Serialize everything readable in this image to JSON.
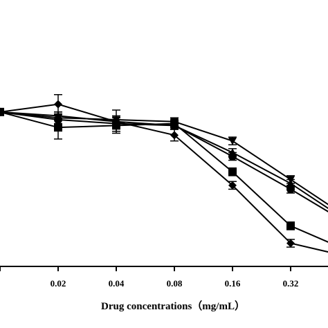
{
  "chart_data": {
    "type": "line",
    "xlabel": "Drug concentrations（mg/mL）",
    "ylabel": "",
    "title": "",
    "categories": [
      "",
      "0.02",
      "0.04",
      "0.08",
      "0.16",
      "0.32",
      ""
    ],
    "series": [
      {
        "marker": "triangle-down",
        "values": [
          100,
          97,
          96,
          95,
          85,
          65,
          45
        ],
        "errors": [
          0,
          3,
          2,
          2,
          2,
          2,
          2
        ]
      },
      {
        "marker": "circle",
        "values": [
          100,
          96,
          94,
          93,
          77,
          60,
          42
        ],
        "errors": [
          0,
          3,
          2,
          2,
          2,
          2,
          2
        ]
      },
      {
        "marker": "triangle-up",
        "values": [
          100,
          98,
          95,
          93,
          79,
          63,
          43
        ],
        "errors": [
          0,
          2,
          2,
          2,
          2,
          2,
          2
        ]
      },
      {
        "marker": "square",
        "values": [
          100,
          92,
          93,
          94,
          69,
          41,
          28
        ],
        "errors": [
          0,
          6,
          3,
          2,
          2,
          2,
          2
        ]
      },
      {
        "marker": "diamond",
        "values": [
          100,
          104,
          95,
          88,
          62,
          32,
          25
        ],
        "errors": [
          0,
          5,
          6,
          3,
          2,
          2,
          2
        ]
      }
    ],
    "colors": {
      "line": "#000000",
      "marker": "#000000"
    },
    "ylim": [
      20,
      115
    ],
    "grid": false,
    "legend": "none"
  }
}
